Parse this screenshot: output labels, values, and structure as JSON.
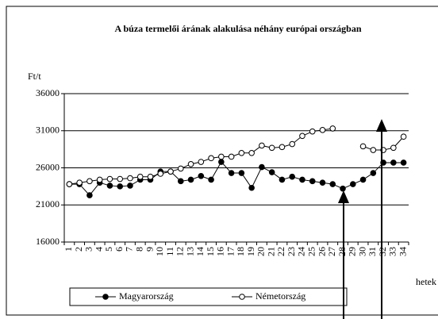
{
  "chart_data": {
    "type": "line",
    "title": "A búza termelői árának alakulása néhány európai országban",
    "y_label": "Ft/t",
    "x_label": "hetek",
    "categories": [
      1,
      2,
      3,
      4,
      5,
      6,
      7,
      8,
      9,
      10,
      11,
      12,
      13,
      14,
      15,
      16,
      17,
      18,
      19,
      20,
      21,
      22,
      23,
      24,
      25,
      26,
      27,
      28,
      29,
      30,
      31,
      32,
      33,
      34
    ],
    "series": [
      {
        "name": "Magyarország",
        "color": "#000000",
        "marker": "filled",
        "values": [
          23800,
          23800,
          22300,
          24000,
          23600,
          23500,
          23600,
          24400,
          24400,
          25500,
          25500,
          24200,
          24400,
          24900,
          24400,
          26800,
          25300,
          25300,
          23300,
          26100,
          25400,
          24400,
          24800,
          24400,
          24200,
          24000,
          23800,
          23200,
          23800,
          24400,
          25300,
          26700,
          26700,
          26700
        ]
      },
      {
        "name": "Németország",
        "color": "#000000",
        "marker": "open",
        "values": [
          23800,
          24000,
          24200,
          24400,
          24500,
          24500,
          24600,
          24800,
          24800,
          25200,
          25500,
          25900,
          26500,
          26800,
          27300,
          27500,
          27500,
          28000,
          28000,
          29000,
          28700,
          28800,
          29200,
          30300,
          30900,
          31100,
          31300,
          null,
          null,
          28900,
          28400,
          28400,
          28700,
          30200
        ]
      }
    ],
    "ylim": [
      16000,
      36000
    ],
    "yticks": [
      16000,
      21000,
      26000,
      31000,
      36000
    ],
    "grid": true
  }
}
